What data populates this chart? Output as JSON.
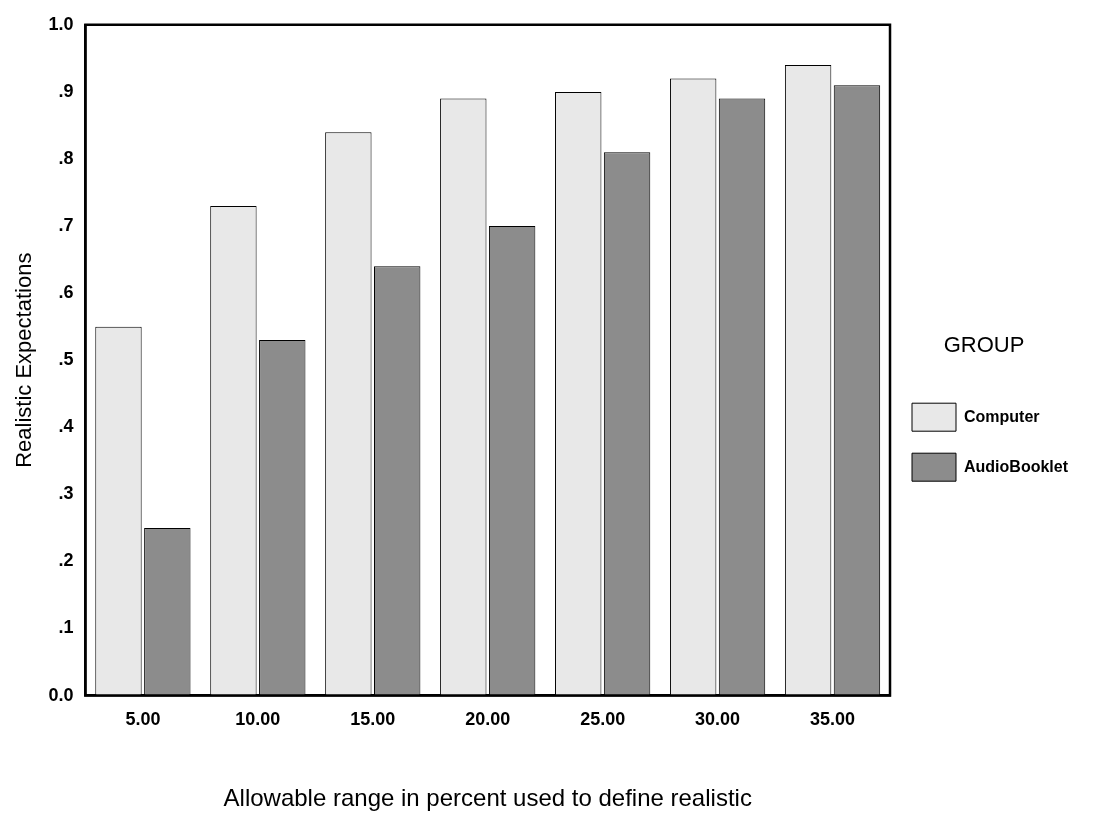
{
  "chart_data": {
    "type": "bar",
    "xlabel": "Allowable range in percent used to define realistic",
    "ylabel": "Realistic Expectations",
    "legend_title": "GROUP",
    "legend": "right",
    "grid": false,
    "categories": [
      "5.00",
      "10.00",
      "15.00",
      "20.00",
      "25.00",
      "30.00",
      "35.00"
    ],
    "series": [
      {
        "name": "Computer",
        "color": "#e8e8e8",
        "values": [
          0.55,
          0.73,
          0.84,
          0.89,
          0.9,
          0.92,
          0.94
        ]
      },
      {
        "name": "AudioBooklet",
        "color": "#8c8c8c",
        "values": [
          0.25,
          0.53,
          0.64,
          0.7,
          0.81,
          0.89,
          0.91
        ]
      }
    ],
    "ylim": [
      0,
      1
    ],
    "yticks": [
      {
        "value": 0,
        "label": "0.0"
      },
      {
        "value": 0.1,
        "label": ".1"
      },
      {
        "value": 0.2,
        "label": ".2"
      },
      {
        "value": 0.3,
        "label": ".3"
      },
      {
        "value": 0.4,
        "label": ".4"
      },
      {
        "value": 0.5,
        "label": ".5"
      },
      {
        "value": 0.6,
        "label": ".6"
      },
      {
        "value": 0.7,
        "label": ".7"
      },
      {
        "value": 0.8,
        "label": ".8"
      },
      {
        "value": 0.9,
        "label": ".9"
      },
      {
        "value": 1,
        "label": "1.0"
      }
    ]
  }
}
